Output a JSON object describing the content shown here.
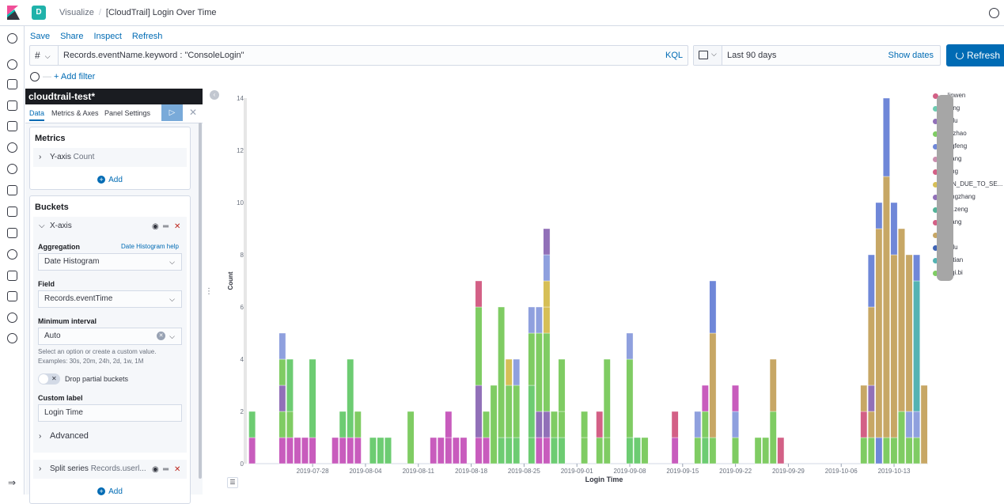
{
  "header": {
    "space_letter": "D",
    "breadcrumb_root": "Visualize",
    "breadcrumb_current": "[CloudTrail] Login Over Time"
  },
  "top_menu": [
    "Save",
    "Share",
    "Inspect",
    "Refresh"
  ],
  "query": {
    "lang_toggle": "#",
    "text": "Records.eventName.keyword : \"ConsoleLogin\"",
    "language": "KQL"
  },
  "date_picker": {
    "range": "Last 90 days",
    "show_dates": "Show dates"
  },
  "refresh_label": "Refresh",
  "filter": {
    "add_filter": "+ Add filter"
  },
  "editor": {
    "index_title": "cloudtrail-test*",
    "tabs": [
      "Data",
      "Metrics & Axes",
      "Panel Settings"
    ],
    "metrics": {
      "title": "Metrics",
      "y_axis_label": "Y-axis",
      "y_axis_agg": "Count",
      "add": "Add"
    },
    "buckets": {
      "title": "Buckets",
      "x_axis_label": "X-axis",
      "aggregation_label": "Aggregation",
      "aggregation_help": "Date Histogram help",
      "aggregation_value": "Date Histogram",
      "field_label": "Field",
      "field_value": "Records.eventTime",
      "min_interval_label": "Minimum interval",
      "min_interval_value": "Auto",
      "help_line_1": "Select an option or create a custom value.",
      "help_line_2": "Examples: 30s, 20m, 24h, 2d, 1w, 1M",
      "drop_partial": "Drop partial buckets",
      "custom_label_label": "Custom label",
      "custom_label_value": "Login Time",
      "advanced": "Advanced",
      "split_series": "Split series",
      "split_series_field": "Records.userl...",
      "add": "Add"
    }
  },
  "chart_data": {
    "type": "bar",
    "stacked": true,
    "xlabel": "Login Time",
    "ylabel": "Count",
    "ylim": [
      0,
      14
    ],
    "yticks": [
      0,
      2,
      4,
      6,
      8,
      10,
      12,
      14
    ],
    "x_tick_labels": [
      "2019-07-28",
      "2019-08-04",
      "2019-08-11",
      "2019-08-18",
      "2019-08-25",
      "2019-09-01",
      "2019-09-08",
      "2019-09-15",
      "2019-09-22",
      "2019-09-29",
      "2019-10-06",
      "2019-10-13"
    ],
    "x_range": [
      "2019-07-20",
      "2019-10-17"
    ],
    "grid": false,
    "legend_position": "right",
    "series": [
      {
        "name": "...linwen",
        "color": "#d36086"
      },
      {
        "name": "...feng",
        "color": "#6dccb1"
      },
      {
        "name": "...e.lu",
        "color": "#9170b8"
      },
      {
        "name": "...a.zhao",
        "color": "#7fcc63"
      },
      {
        "name": "...ngfeng",
        "color": "#6f87d8"
      },
      {
        "name": "...hang",
        "color": "#ca8eae"
      },
      {
        "name": "...ang",
        "color": "#d36086"
      },
      {
        "name": "...EN_DUE_TO_SE...",
        "color": "#d6bf57"
      },
      {
        "name": "...engzhang",
        "color": "#9170b8"
      },
      {
        "name": "...el.zeng",
        "color": "#54b399"
      },
      {
        "name": "...hang",
        "color": "#d36086"
      },
      {
        "name": "",
        "color": "#c7a765"
      },
      {
        "name": "...n.lu",
        "color": "#3f64b5"
      },
      {
        "name": "...n.tian",
        "color": "#54b3b3"
      },
      {
        "name": "...gqi.bi",
        "color": "#7fcc63"
      }
    ],
    "bars": [
      {
        "date": "2019-07-20",
        "stack": [
          {
            "v": 1,
            "c": "#c85cbd"
          },
          {
            "v": 1,
            "c": "#6dcc72"
          }
        ]
      },
      {
        "date": "2019-07-24",
        "stack": [
          {
            "v": 1,
            "c": "#c85cbd"
          },
          {
            "v": 1,
            "c": "#7fcc63"
          },
          {
            "v": 1,
            "c": "#9170b8"
          },
          {
            "v": 1,
            "c": "#7fcc63"
          },
          {
            "v": 1,
            "c": "#8fa0de"
          }
        ]
      },
      {
        "date": "2019-07-25",
        "stack": [
          {
            "v": 1,
            "c": "#c85cbd"
          },
          {
            "v": 1,
            "c": "#7fcc63"
          },
          {
            "v": 2,
            "c": "#6dcc72"
          }
        ]
      },
      {
        "date": "2019-07-26",
        "stack": [
          {
            "v": 1,
            "c": "#c85cbd"
          }
        ]
      },
      {
        "date": "2019-07-27",
        "stack": [
          {
            "v": 1,
            "c": "#c85cbd"
          }
        ]
      },
      {
        "date": "2019-07-28",
        "stack": [
          {
            "v": 1,
            "c": "#c85cbd"
          },
          {
            "v": 3,
            "c": "#6dcc72"
          }
        ]
      },
      {
        "date": "2019-07-31",
        "stack": [
          {
            "v": 1,
            "c": "#c85cbd"
          }
        ]
      },
      {
        "date": "2019-08-01",
        "stack": [
          {
            "v": 1,
            "c": "#c85cbd"
          },
          {
            "v": 1,
            "c": "#6dcc72"
          }
        ]
      },
      {
        "date": "2019-08-02",
        "stack": [
          {
            "v": 1,
            "c": "#c85cbd"
          },
          {
            "v": 3,
            "c": "#6dcc72"
          }
        ]
      },
      {
        "date": "2019-08-03",
        "stack": [
          {
            "v": 1,
            "c": "#c85cbd"
          },
          {
            "v": 1,
            "c": "#7fcc63"
          }
        ]
      },
      {
        "date": "2019-08-05",
        "stack": [
          {
            "v": 1,
            "c": "#6dcc72"
          }
        ]
      },
      {
        "date": "2019-08-06",
        "stack": [
          {
            "v": 1,
            "c": "#6dcc72"
          }
        ]
      },
      {
        "date": "2019-08-07",
        "stack": [
          {
            "v": 1,
            "c": "#6dcc72"
          }
        ]
      },
      {
        "date": "2019-08-10",
        "stack": [
          {
            "v": 2,
            "c": "#7fcc63"
          }
        ]
      },
      {
        "date": "2019-08-13",
        "stack": [
          {
            "v": 1,
            "c": "#c85cbd"
          }
        ]
      },
      {
        "date": "2019-08-14",
        "stack": [
          {
            "v": 1,
            "c": "#c85cbd"
          }
        ]
      },
      {
        "date": "2019-08-15",
        "stack": [
          {
            "v": 1,
            "c": "#c85cbd"
          },
          {
            "v": 1,
            "c": "#c85cbd"
          }
        ]
      },
      {
        "date": "2019-08-16",
        "stack": [
          {
            "v": 1,
            "c": "#c85cbd"
          }
        ]
      },
      {
        "date": "2019-08-17",
        "stack": [
          {
            "v": 1,
            "c": "#c85cbd"
          }
        ]
      },
      {
        "date": "2019-08-19",
        "stack": [
          {
            "v": 1,
            "c": "#c85cbd"
          },
          {
            "v": 2,
            "c": "#9170b8"
          },
          {
            "v": 3,
            "c": "#7fcc63"
          },
          {
            "v": 1,
            "c": "#d36086"
          }
        ]
      },
      {
        "date": "2019-08-20",
        "stack": [
          {
            "v": 1,
            "c": "#c85cbd"
          },
          {
            "v": 1,
            "c": "#7fcc63"
          }
        ]
      },
      {
        "date": "2019-08-21",
        "stack": [
          {
            "v": 3,
            "c": "#7fcc63"
          }
        ]
      },
      {
        "date": "2019-08-22",
        "stack": [
          {
            "v": 1,
            "c": "#6dcc72"
          },
          {
            "v": 5,
            "c": "#7fcc63"
          }
        ]
      },
      {
        "date": "2019-08-23",
        "stack": [
          {
            "v": 1,
            "c": "#6dcc72"
          },
          {
            "v": 2,
            "c": "#7fcc63"
          },
          {
            "v": 1,
            "c": "#d6bf57"
          }
        ]
      },
      {
        "date": "2019-08-24",
        "stack": [
          {
            "v": 1,
            "c": "#6dcc72"
          },
          {
            "v": 2,
            "c": "#7fcc63"
          },
          {
            "v": 1,
            "c": "#8fa0de"
          }
        ]
      },
      {
        "date": "2019-08-26",
        "stack": [
          {
            "v": 1,
            "c": "#6dcc72"
          },
          {
            "v": 2,
            "c": "#6dcc72"
          },
          {
            "v": 2,
            "c": "#7fcc63"
          },
          {
            "v": 1,
            "c": "#8fa0de"
          }
        ]
      },
      {
        "date": "2019-08-27",
        "stack": [
          {
            "v": 1,
            "c": "#c85cbd"
          },
          {
            "v": 1,
            "c": "#9170b8"
          },
          {
            "v": 3,
            "c": "#7fcc63"
          },
          {
            "v": 1,
            "c": "#8fa0de"
          }
        ]
      },
      {
        "date": "2019-08-28",
        "stack": [
          {
            "v": 1,
            "c": "#c85cbd"
          },
          {
            "v": 1,
            "c": "#9170b8"
          },
          {
            "v": 3,
            "c": "#7fcc63"
          },
          {
            "v": 1,
            "c": "#d6bf57"
          },
          {
            "v": 1,
            "c": "#d6bf57"
          },
          {
            "v": 1,
            "c": "#8fa0de"
          },
          {
            "v": 1,
            "c": "#9170b8"
          }
        ]
      },
      {
        "date": "2019-08-29",
        "stack": [
          {
            "v": 1,
            "c": "#6dcc72"
          },
          {
            "v": 1,
            "c": "#7fcc63"
          }
        ]
      },
      {
        "date": "2019-08-30",
        "stack": [
          {
            "v": 1,
            "c": "#6dcc72"
          },
          {
            "v": 1,
            "c": "#7fcc63"
          },
          {
            "v": 2,
            "c": "#7fcc63"
          }
        ]
      },
      {
        "date": "2019-09-02",
        "stack": [
          {
            "v": 1,
            "c": "#7fcc63"
          },
          {
            "v": 1,
            "c": "#7fcc63"
          }
        ]
      },
      {
        "date": "2019-09-04",
        "stack": [
          {
            "v": 1,
            "c": "#7fcc63"
          },
          {
            "v": 1,
            "c": "#d36086"
          }
        ]
      },
      {
        "date": "2019-09-05",
        "stack": [
          {
            "v": 1,
            "c": "#7fcc63"
          },
          {
            "v": 3,
            "c": "#7fcc63"
          }
        ]
      },
      {
        "date": "2019-09-08",
        "stack": [
          {
            "v": 1,
            "c": "#6dcc72"
          },
          {
            "v": 3,
            "c": "#7fcc63"
          },
          {
            "v": 1,
            "c": "#8fa0de"
          }
        ]
      },
      {
        "date": "2019-09-09",
        "stack": [
          {
            "v": 1,
            "c": "#6dcc72"
          }
        ]
      },
      {
        "date": "2019-09-10",
        "stack": [
          {
            "v": 1,
            "c": "#7fcc63"
          }
        ]
      },
      {
        "date": "2019-09-14",
        "stack": [
          {
            "v": 1,
            "c": "#c85cbd"
          },
          {
            "v": 1,
            "c": "#d36086"
          }
        ]
      },
      {
        "date": "2019-09-17",
        "stack": [
          {
            "v": 1,
            "c": "#7fcc63"
          },
          {
            "v": 1,
            "c": "#8fa0de"
          }
        ]
      },
      {
        "date": "2019-09-18",
        "stack": [
          {
            "v": 1,
            "c": "#6dcc72"
          },
          {
            "v": 1,
            "c": "#7fcc63"
          },
          {
            "v": 1,
            "c": "#c85cbd"
          }
        ]
      },
      {
        "date": "2019-09-19",
        "stack": [
          {
            "v": 1,
            "c": "#7fcc63"
          },
          {
            "v": 4,
            "c": "#c7a765"
          },
          {
            "v": 2,
            "c": "#6f87d8"
          }
        ]
      },
      {
        "date": "2019-09-22",
        "stack": [
          {
            "v": 1,
            "c": "#7fcc63"
          },
          {
            "v": 1,
            "c": "#8fa0de"
          },
          {
            "v": 1,
            "c": "#c85cbd"
          }
        ]
      },
      {
        "date": "2019-09-25",
        "stack": [
          {
            "v": 1,
            "c": "#7fcc63"
          }
        ]
      },
      {
        "date": "2019-09-26",
        "stack": [
          {
            "v": 1,
            "c": "#7fcc63"
          }
        ]
      },
      {
        "date": "2019-09-27",
        "stack": [
          {
            "v": 2,
            "c": "#7fcc63"
          },
          {
            "v": 2,
            "c": "#c7a765"
          }
        ]
      },
      {
        "date": "2019-09-28",
        "stack": [
          {
            "v": 1,
            "c": "#d36086"
          }
        ]
      },
      {
        "date": "2019-10-09",
        "stack": [
          {
            "v": 1,
            "c": "#7fcc63"
          },
          {
            "v": 1,
            "c": "#d36086"
          },
          {
            "v": 1,
            "c": "#c7a765"
          }
        ]
      },
      {
        "date": "2019-10-10",
        "stack": [
          {
            "v": 1,
            "c": "#7fcc63"
          },
          {
            "v": 1,
            "c": "#c7a765"
          },
          {
            "v": 1,
            "c": "#9170b8"
          },
          {
            "v": 3,
            "c": "#c7a765"
          },
          {
            "v": 2,
            "c": "#6f87d8"
          }
        ]
      },
      {
        "date": "2019-10-11",
        "stack": [
          {
            "v": 1,
            "c": "#6f87d8"
          },
          {
            "v": 8,
            "c": "#c7a765"
          },
          {
            "v": 1,
            "c": "#6f87d8"
          }
        ]
      },
      {
        "date": "2019-10-12",
        "stack": [
          {
            "v": 1,
            "c": "#7fcc63"
          },
          {
            "v": 10,
            "c": "#c7a765"
          },
          {
            "v": 3,
            "c": "#6f87d8"
          }
        ]
      },
      {
        "date": "2019-10-13",
        "stack": [
          {
            "v": 1,
            "c": "#7fcc63"
          },
          {
            "v": 7,
            "c": "#c7a765"
          },
          {
            "v": 2,
            "c": "#6f87d8"
          }
        ]
      },
      {
        "date": "2019-10-14",
        "stack": [
          {
            "v": 2,
            "c": "#7fcc63"
          },
          {
            "v": 7,
            "c": "#c7a765"
          }
        ]
      },
      {
        "date": "2019-10-15",
        "stack": [
          {
            "v": 1,
            "c": "#7fcc63"
          },
          {
            "v": 1,
            "c": "#8fa0de"
          },
          {
            "v": 6,
            "c": "#c7a765"
          }
        ]
      },
      {
        "date": "2019-10-16",
        "stack": [
          {
            "v": 1,
            "c": "#7fcc63"
          },
          {
            "v": 1,
            "c": "#8fa0de"
          },
          {
            "v": 5,
            "c": "#54b3b3"
          },
          {
            "v": 1,
            "c": "#6f87d8"
          }
        ]
      },
      {
        "date": "2019-10-17",
        "stack": [
          {
            "v": 3,
            "c": "#c7a765"
          }
        ]
      }
    ]
  }
}
